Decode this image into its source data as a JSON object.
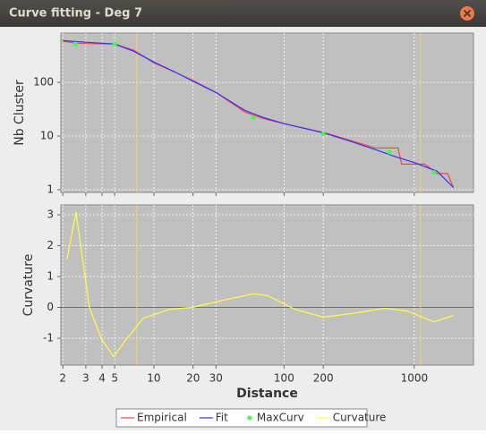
{
  "window": {
    "title": "Curve fitting - Deg 7"
  },
  "chart_data": [
    {
      "type": "line",
      "ylabel": "Nb Cluster",
      "log_x": true,
      "log_y": true,
      "grid": true,
      "xlim": [
        1.93,
        2850
      ],
      "xticks": [
        2,
        3,
        4,
        5,
        10,
        20,
        30,
        100,
        200,
        1000
      ],
      "ylim": [
        0.89,
        830
      ],
      "yticks": [
        1,
        10,
        100
      ],
      "markers": [
        7.4,
        1117
      ],
      "marker_color": "#f2dc5a",
      "series": [
        {
          "name": "Empirical",
          "color": "#ff4040",
          "kind": "line",
          "x": [
            2,
            2.5,
            3,
            5,
            7,
            10,
            15,
            20,
            30,
            50,
            70,
            100,
            200,
            300,
            500,
            600,
            750,
            800,
            1200,
            1500,
            1800,
            2000
          ],
          "values": [
            585,
            540,
            530,
            520,
            400,
            232,
            150,
            108,
            65,
            28,
            21,
            17,
            11.7,
            8.8,
            6,
            6,
            6,
            3,
            3,
            2,
            2,
            1.1
          ]
        },
        {
          "name": "Fit",
          "color": "#3030ff",
          "kind": "line",
          "x": [
            2,
            3,
            5,
            7,
            10,
            15,
            20,
            30,
            50,
            70,
            100,
            200,
            300,
            500,
            700,
            1000,
            1500,
            2000
          ],
          "values": [
            600,
            560,
            520,
            380,
            240,
            150,
            105,
            65,
            30,
            22,
            17,
            11.5,
            8.5,
            5.6,
            4.2,
            3.2,
            2.2,
            1.1
          ]
        },
        {
          "name": "MaxCurv",
          "color": "#40ff40",
          "kind": "points",
          "x": [
            2.5,
            5,
            58,
            200,
            643,
            1416
          ],
          "values": [
            520,
            520,
            22,
            11,
            5,
            2.1
          ]
        }
      ]
    },
    {
      "type": "line",
      "ylabel": "Curvature",
      "xlabel": "Distance",
      "log_x": true,
      "log_y": false,
      "grid": true,
      "xlim": [
        1.93,
        2850
      ],
      "xticks": [
        2,
        3,
        4,
        5,
        10,
        20,
        30,
        100,
        200,
        1000
      ],
      "ylim": [
        -1.87,
        3.32
      ],
      "yticks": [
        -1,
        0,
        1,
        2,
        3
      ],
      "markers": [
        7.4,
        1117
      ],
      "marker_color": "#f2dc5a",
      "series": [
        {
          "name": "Curvature",
          "color": "#ffff40",
          "kind": "line",
          "x": [
            2.15,
            2.52,
            3.2,
            3.93,
            4.9,
            6,
            8.3,
            13.3,
            19.8,
            34,
            58,
            75,
            121,
            200,
            369,
            593,
            881,
            1416,
            2000
          ],
          "values": [
            1.55,
            3.09,
            0,
            -1,
            -1.6,
            -1.08,
            -0.35,
            -0.06,
            0,
            0.23,
            0.44,
            0.38,
            -0.06,
            -0.32,
            -0.17,
            -0.03,
            -0.12,
            -0.47,
            -0.26
          ]
        }
      ]
    }
  ]
}
